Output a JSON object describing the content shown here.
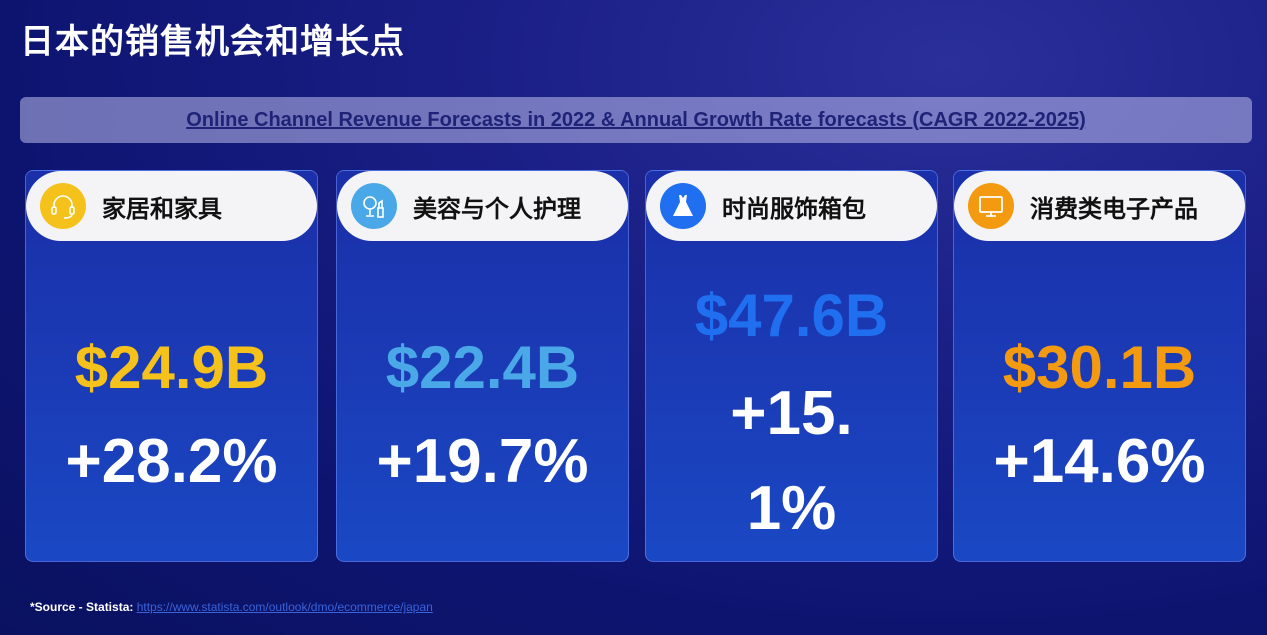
{
  "title": "日本的销售机会和增长点",
  "banner": "Online Channel Revenue Forecasts in 2022 & Annual Growth Rate forecasts (CAGR 2022-2025)",
  "cards": [
    {
      "label": "家居和家具",
      "value": "$24.9B",
      "growth": "+28.2%",
      "icon": "headset-icon",
      "color": "#f5c21b"
    },
    {
      "label": "美容与个人护理",
      "value": "$22.4B",
      "growth": "+19.7%",
      "icon": "mirror-lipstick-icon",
      "color": "#4aa8e8"
    },
    {
      "label": "时尚服饰箱包",
      "value": "$47.6B",
      "growth": "+15.1%",
      "icon": "dress-icon",
      "color": "#1f6ff0"
    },
    {
      "label": "消费类电子产品",
      "value": "$30.1B",
      "growth": "+14.6%",
      "icon": "monitor-icon",
      "color": "#f39a10"
    }
  ],
  "source": {
    "label": "*Source - Statista:",
    "link": "https://www.statista.com/outlook/dmo/ecommerce/japan"
  }
}
